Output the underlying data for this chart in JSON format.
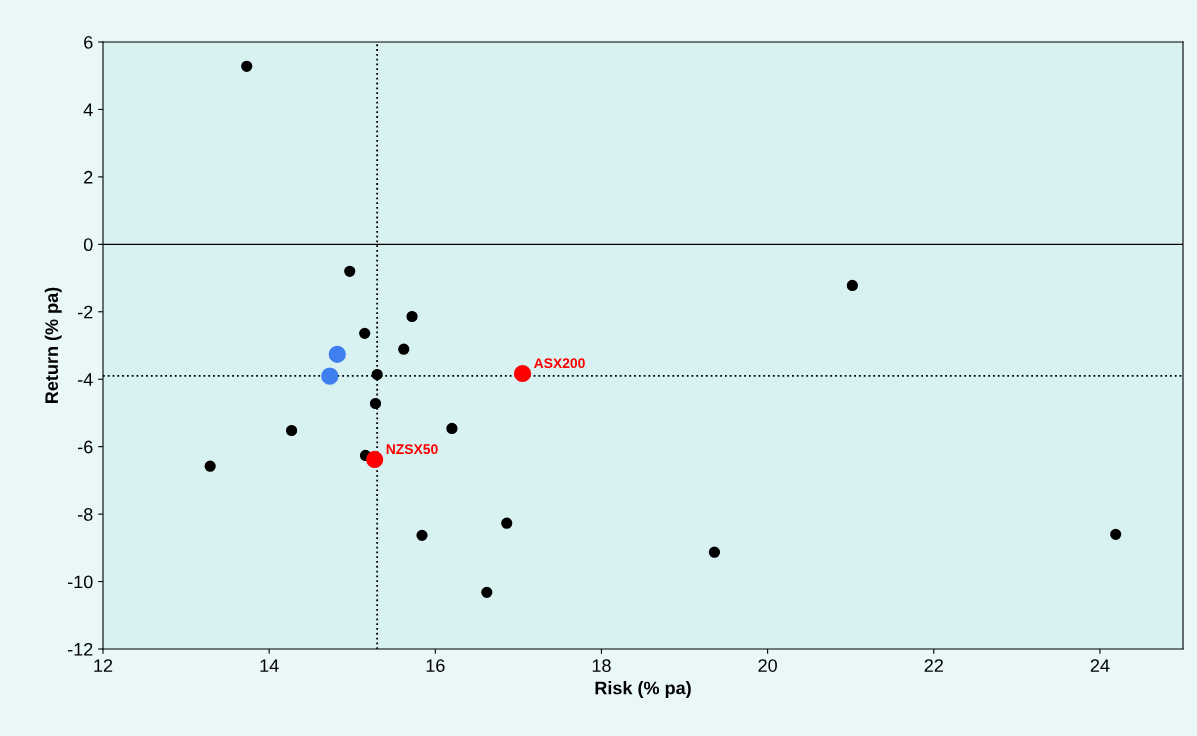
{
  "chart_data": {
    "type": "scatter",
    "xlabel": "Risk (% pa)",
    "ylabel": "Return (% pa)",
    "xlim": [
      12,
      25
    ],
    "xticks": [
      12,
      14,
      16,
      18,
      20,
      22,
      24
    ],
    "ylim": [
      -12,
      6
    ],
    "yticks": [
      -12,
      -10,
      -8,
      -6,
      -4,
      -2,
      0,
      2,
      4,
      6
    ],
    "grid": false,
    "legend": false,
    "marker": "circle",
    "series": [
      {
        "color": "#000000",
        "x": [
          13.73,
          14.97,
          21.02,
          15.72,
          15.15,
          15.62,
          15.3,
          15.28,
          14.27,
          16.2,
          15.16,
          13.29,
          16.86,
          15.84,
          19.36,
          24.19,
          16.62
        ],
        "values": [
          5.28,
          -0.8,
          -1.22,
          -2.14,
          -2.64,
          -3.11,
          -3.86,
          -4.72,
          -5.52,
          -5.46,
          -6.26,
          -6.58,
          -8.27,
          -8.63,
          -9.13,
          -8.6,
          -10.32
        ]
      },
      {
        "color": "#3f7fef",
        "x": [
          14.82,
          14.73
        ],
        "values": [
          -3.26,
          -3.91
        ]
      },
      {
        "color": "#ff0000",
        "x": [
          17.05,
          15.27
        ],
        "values": [
          -3.83,
          -6.38
        ]
      }
    ],
    "ref_lines": [
      {
        "axis": "x",
        "value": 15.3,
        "line_style": "dotted",
        "color": "#000000"
      },
      {
        "axis": "y",
        "value": -3.9,
        "line_style": "dotted",
        "color": "#000000"
      },
      {
        "axis": "y",
        "value": 0,
        "line_style": "solid",
        "color": "#000000"
      }
    ],
    "annotations": [
      {
        "text": "ASX200",
        "x": 17.05,
        "y": -3.83
      },
      {
        "text": "NZSX50",
        "x": 15.27,
        "y": -6.38
      }
    ]
  }
}
